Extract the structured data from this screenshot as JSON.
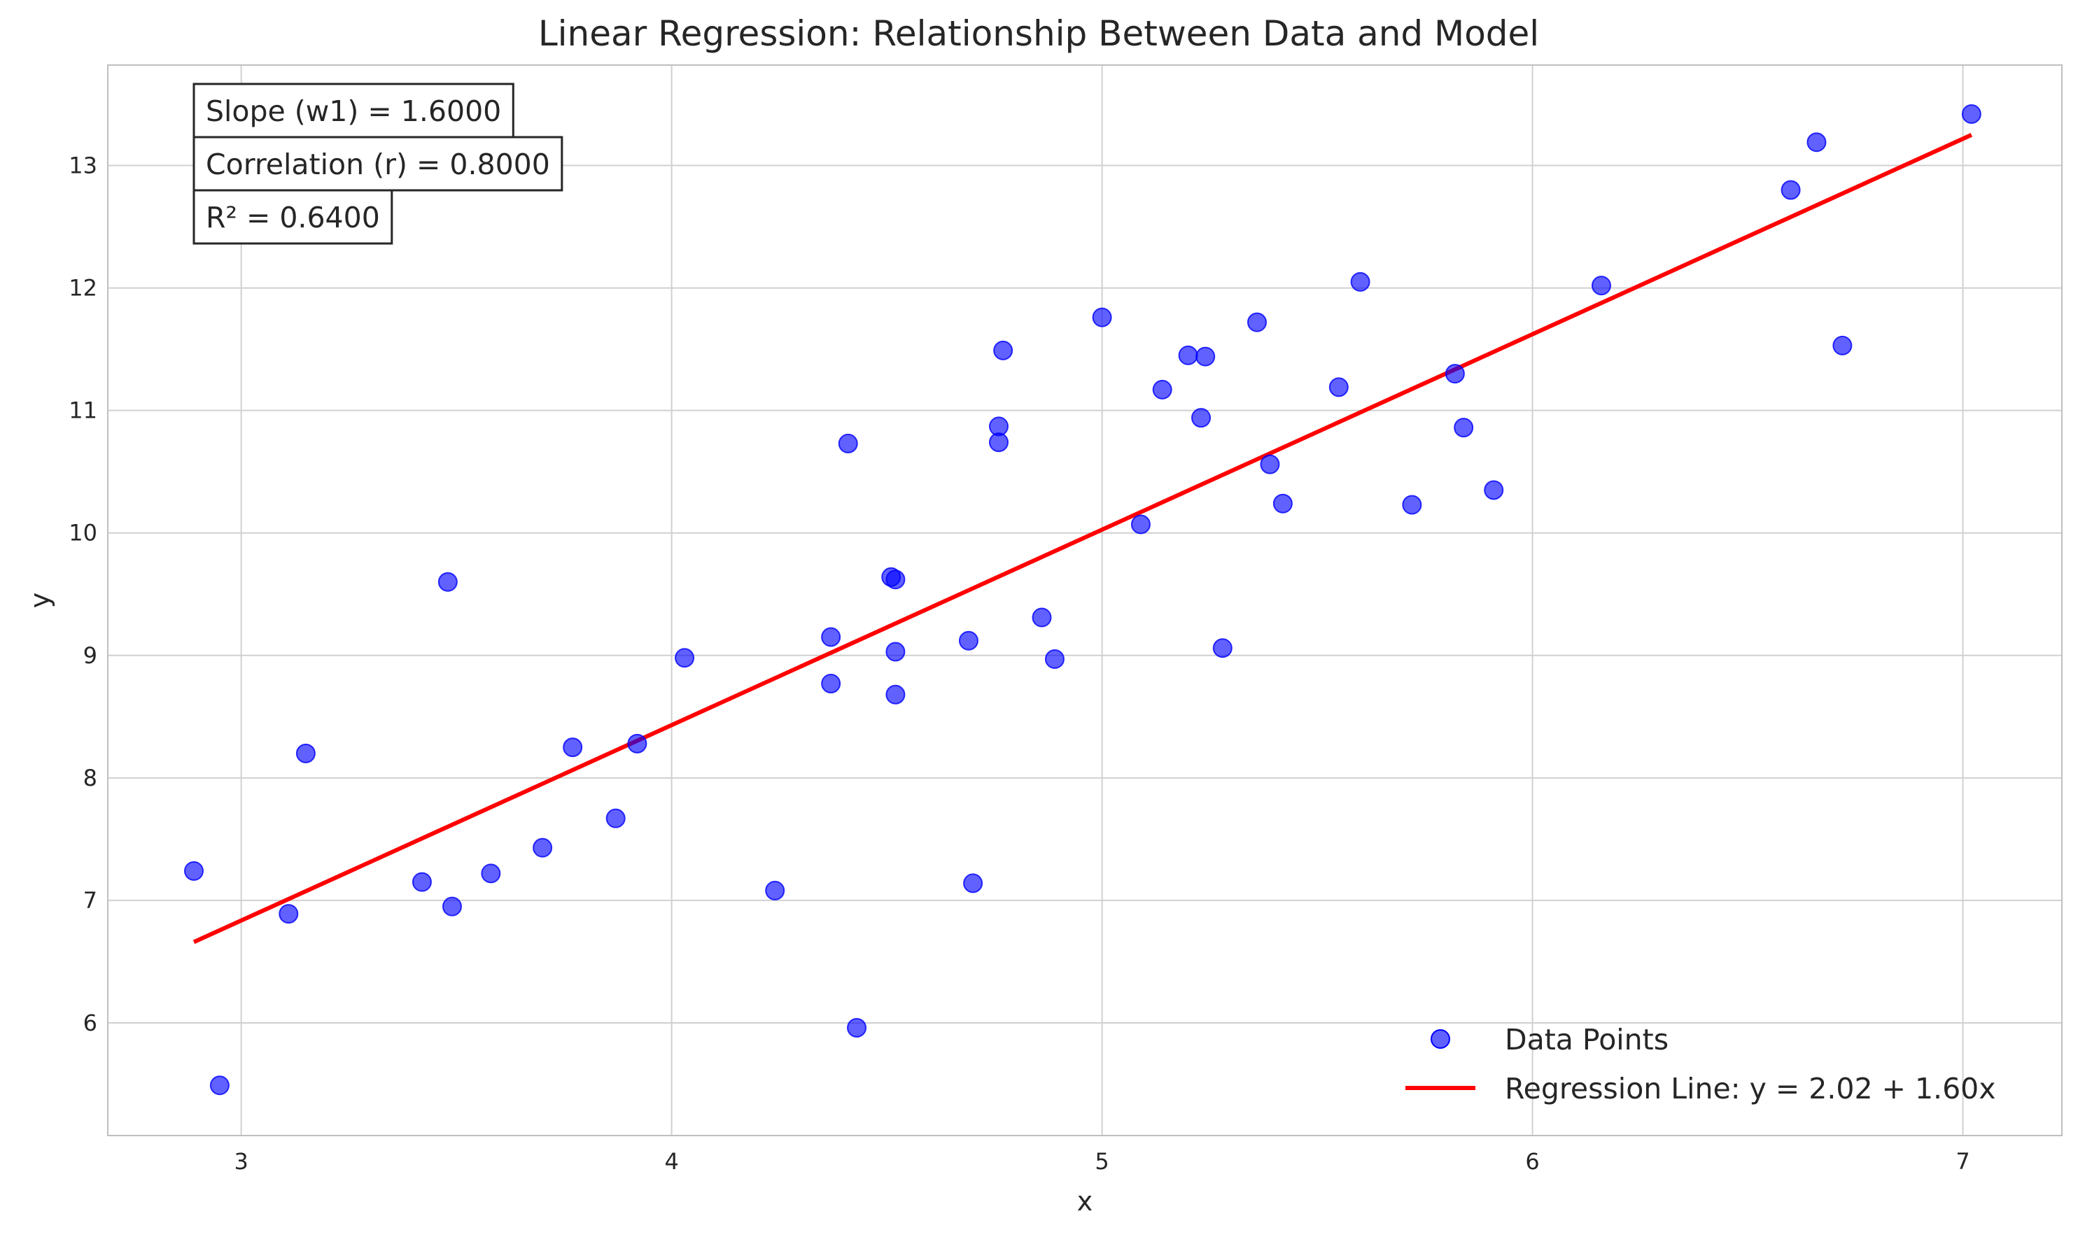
{
  "chart_data": {
    "type": "scatter",
    "title": "Linear Regression: Relationship Between Data and Model",
    "xlabel": "x",
    "ylabel": "y",
    "xlim": [
      2.69,
      7.23
    ],
    "ylim": [
      5.08,
      13.82
    ],
    "xticks": [
      3,
      4,
      5,
      6,
      7
    ],
    "yticks": [
      6,
      7,
      8,
      9,
      10,
      11,
      12,
      13
    ],
    "grid": true,
    "legend_position": "lower-right",
    "colors": {
      "points": "#0000ff",
      "line": "#ff0000",
      "grid": "#d0d0d0",
      "spine": "#bfbfbf"
    },
    "stats": [
      {
        "text": "Slope (w1) = 1.6000"
      },
      {
        "text": "Correlation (r) = 0.8000"
      },
      {
        "text": "R² = 0.6400"
      }
    ],
    "series": [
      {
        "name": "Data Points",
        "type": "scatter",
        "points": [
          [
            2.89,
            7.24
          ],
          [
            2.95,
            5.49
          ],
          [
            3.11,
            6.89
          ],
          [
            3.15,
            8.2
          ],
          [
            3.42,
            7.15
          ],
          [
            3.48,
            9.6
          ],
          [
            3.49,
            6.95
          ],
          [
            3.58,
            7.22
          ],
          [
            3.7,
            7.43
          ],
          [
            3.77,
            8.25
          ],
          [
            3.87,
            7.67
          ],
          [
            3.92,
            8.28
          ],
          [
            4.03,
            8.98
          ],
          [
            4.24,
            7.08
          ],
          [
            4.37,
            9.15
          ],
          [
            4.37,
            8.77
          ],
          [
            4.41,
            10.73
          ],
          [
            4.43,
            5.96
          ],
          [
            4.51,
            9.64
          ],
          [
            4.52,
            9.62
          ],
          [
            4.52,
            9.03
          ],
          [
            4.52,
            8.68
          ],
          [
            4.69,
            9.12
          ],
          [
            4.7,
            7.14
          ],
          [
            4.76,
            10.87
          ],
          [
            4.76,
            10.74
          ],
          [
            4.77,
            11.49
          ],
          [
            4.86,
            9.31
          ],
          [
            4.89,
            8.97
          ],
          [
            5.0,
            11.76
          ],
          [
            5.09,
            10.07
          ],
          [
            5.14,
            11.17
          ],
          [
            5.2,
            11.45
          ],
          [
            5.23,
            10.94
          ],
          [
            5.24,
            11.44
          ],
          [
            5.28,
            9.06
          ],
          [
            5.36,
            11.72
          ],
          [
            5.39,
            10.56
          ],
          [
            5.42,
            10.24
          ],
          [
            5.55,
            11.19
          ],
          [
            5.6,
            12.05
          ],
          [
            5.72,
            10.23
          ],
          [
            5.82,
            11.3
          ],
          [
            5.84,
            10.86
          ],
          [
            5.91,
            10.35
          ],
          [
            6.16,
            12.02
          ],
          [
            6.6,
            12.8
          ],
          [
            6.66,
            13.19
          ],
          [
            6.72,
            11.53
          ],
          [
            7.02,
            13.42
          ]
        ]
      },
      {
        "name": "Regression Line: y = 2.02 + 1.60x",
        "type": "line",
        "points": [
          [
            2.89,
            6.66
          ],
          [
            7.02,
            13.25
          ]
        ]
      }
    ]
  }
}
